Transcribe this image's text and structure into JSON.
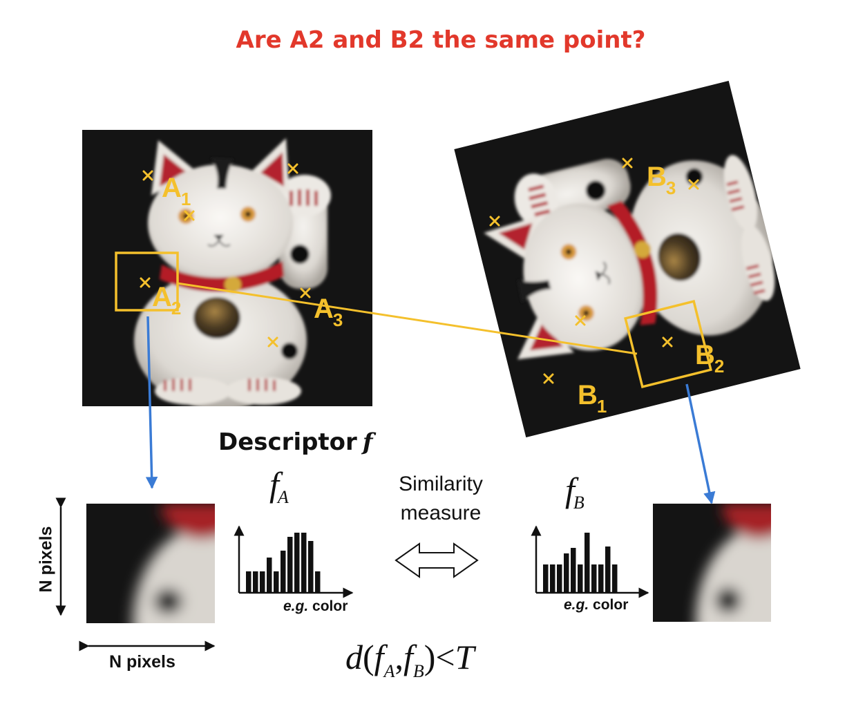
{
  "title": "Are A2 and B2 the same point?",
  "descriptor_heading": "Descriptor",
  "descriptor_symbol": "f",
  "similarity_line1": "Similarity",
  "similarity_line2": "measure",
  "fA": {
    "base": "f",
    "sub": "A"
  },
  "fB": {
    "base": "f",
    "sub": "B"
  },
  "eg_color": {
    "italic": "e.g.",
    "text": " color"
  },
  "n_pixels": "N pixels",
  "formula": {
    "d": "d",
    "open": "(",
    "fa": "f",
    "fa_sub": "A",
    "comma": ",",
    "fb": "f",
    "fb_sub": "B",
    "close": ")",
    "lt": "<",
    "T": "T"
  },
  "points_left": [
    {
      "letter": "A",
      "index": "1"
    },
    {
      "letter": "A",
      "index": "2"
    },
    {
      "letter": "A",
      "index": "3"
    }
  ],
  "points_right": [
    {
      "letter": "B",
      "index": "1"
    },
    {
      "letter": "B",
      "index": "2"
    },
    {
      "letter": "B",
      "index": "3"
    }
  ],
  "colors": {
    "title": "#e2382b",
    "keypoint": "#f4c02c",
    "arrow": "#3a7bd5",
    "match_line": "#f4c02c"
  },
  "histogram_A": {
    "values": [
      3,
      3,
      3,
      5,
      3,
      6,
      8,
      8.6,
      8.6,
      7.4,
      3
    ]
  },
  "histogram_B": {
    "values": [
      4,
      4,
      4,
      5.6,
      6.4,
      4,
      8.6,
      4,
      4,
      6.6,
      4
    ]
  }
}
